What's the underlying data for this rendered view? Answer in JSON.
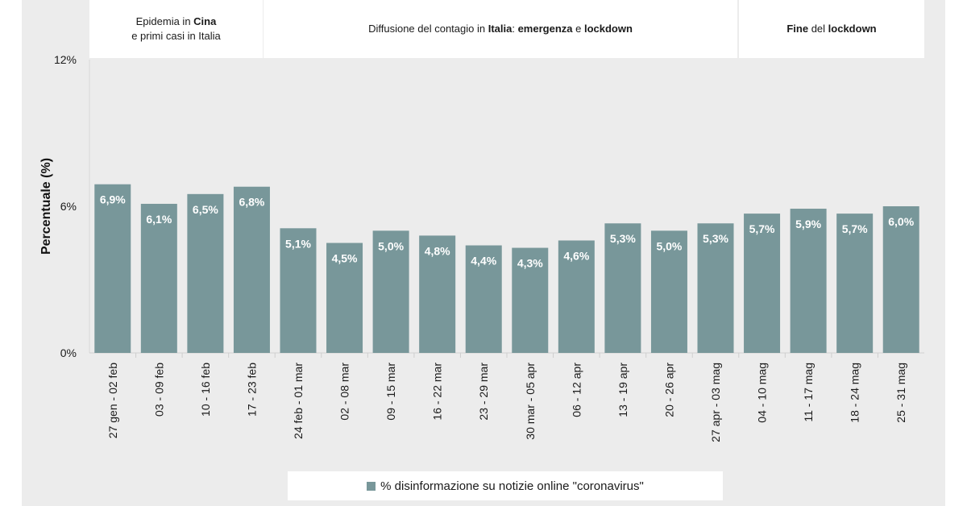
{
  "phases": [
    {
      "line1_pre": "Epidemia in ",
      "line1_bold": "Cina",
      "line2": "e primi casi in Italia"
    },
    {
      "pre": "Diffusione del contagio in ",
      "bold1": "Italia",
      "mid1": ": ",
      "bold2": "emergenza",
      "mid2": " e ",
      "bold3": "lockdown"
    },
    {
      "bold1": "Fine",
      "mid": " del ",
      "bold2": "lockdown"
    }
  ],
  "chart_data": {
    "type": "bar",
    "ylabel": "Percentuale (%)",
    "ylim": [
      0,
      12
    ],
    "yticks": [
      "0%",
      "6%",
      "12%"
    ],
    "grid": false,
    "legend_position": "bottom",
    "categories": [
      "27 gen - 02 feb",
      "03 - 09 feb",
      "10 - 16 feb",
      "17 - 23 feb",
      "24 feb - 01 mar",
      "02 - 08 mar",
      "09 - 15 mar",
      "16 - 22 mar",
      "23 - 29 mar",
      "30 mar - 05 apr",
      "06 - 12 apr",
      "13 - 19 apr",
      "20 - 26 apr",
      "27 apr - 03 mag",
      "04 - 10 mag",
      "11 - 17 mag",
      "18 - 24 mag",
      "25 - 31 mag"
    ],
    "series": [
      {
        "name": "% disinformazione su notizie online \"coronavirus\"",
        "color": "#78979a",
        "values": [
          6.9,
          6.1,
          6.5,
          6.8,
          5.1,
          4.5,
          5.0,
          4.8,
          4.4,
          4.3,
          4.6,
          5.3,
          5.0,
          5.3,
          5.7,
          5.9,
          5.7,
          6.0
        ],
        "labels": [
          "6,9%",
          "6,1%",
          "6,5%",
          "6,8%",
          "5,1%",
          "4,5%",
          "5,0%",
          "4,8%",
          "4,4%",
          "4,3%",
          "4,6%",
          "5,3%",
          "5,0%",
          "5,3%",
          "5,7%",
          "5,9%",
          "5,7%",
          "6,0%"
        ]
      }
    ]
  }
}
